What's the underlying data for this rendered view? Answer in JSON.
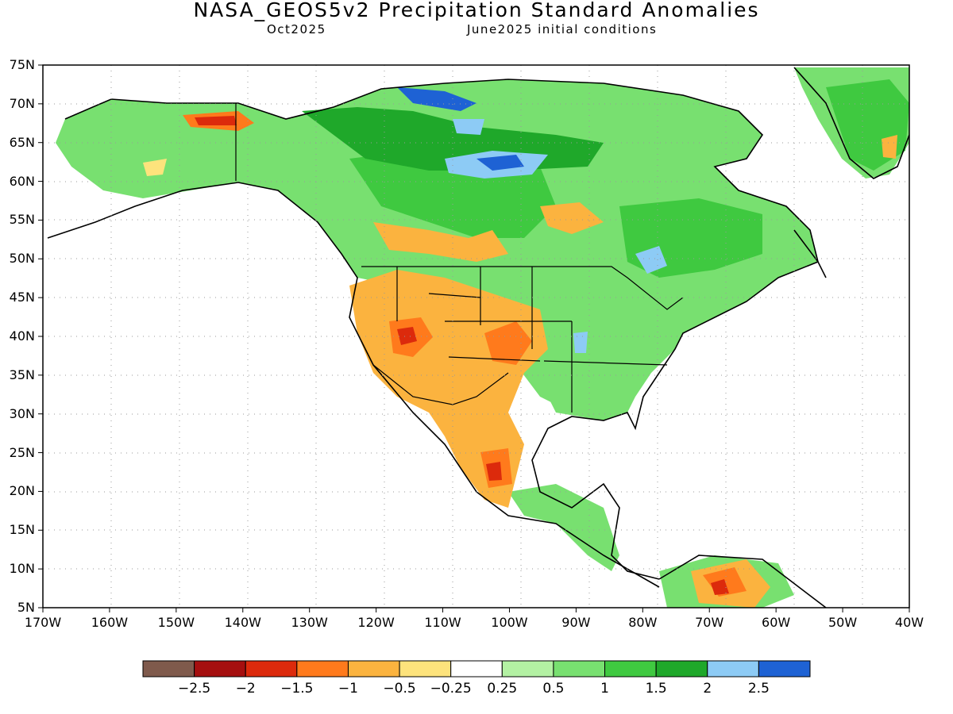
{
  "title": "NASA_GEOS5v2 Precipitation Standard Anomalies",
  "subtitle_left": "Oct2025",
  "subtitle_right": "June2025 initial conditions",
  "lat_ticks": [
    "75N",
    "70N",
    "65N",
    "60N",
    "55N",
    "50N",
    "45N",
    "40N",
    "35N",
    "30N",
    "25N",
    "20N",
    "15N",
    "10N",
    "5N"
  ],
  "lon_ticks": [
    "170W",
    "160W",
    "150W",
    "140W",
    "130W",
    "120W",
    "110W",
    "100W",
    "90W",
    "80W",
    "70W",
    "60W",
    "50W",
    "40W"
  ],
  "colorbar": {
    "colors": [
      "#7f5a4c",
      "#a50f0f",
      "#dc2a0c",
      "#ff7a1c",
      "#fbb33f",
      "#fde37c",
      "#ffffff",
      "#b3f1a3",
      "#78e070",
      "#3fc940",
      "#1fa82a",
      "#8dcbf5",
      "#1e62d4"
    ],
    "labels": [
      "−2.5",
      "−2",
      "−1.5",
      "−1",
      "−0.5",
      "−0.25",
      "0.25",
      "0.5",
      "1",
      "1.5",
      "2",
      "2.5"
    ]
  }
}
